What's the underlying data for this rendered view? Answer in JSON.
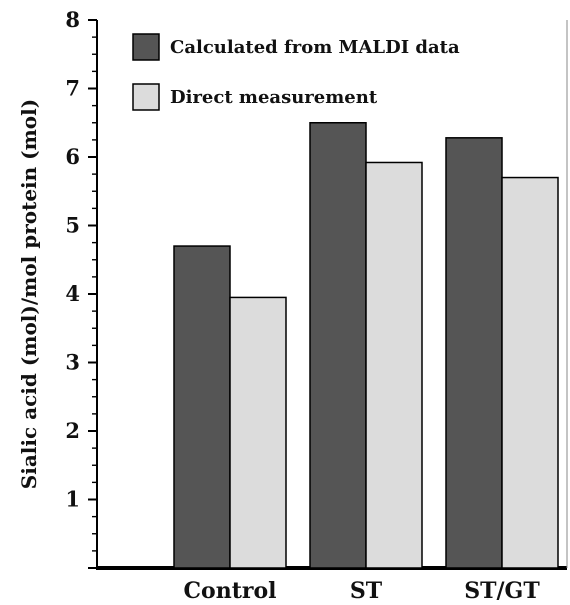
{
  "chart_data": {
    "type": "bar",
    "title": "",
    "xlabel": "",
    "ylabel": "Sialic acid (mol)/mol protein (mol)",
    "ylim": [
      0,
      8
    ],
    "yticks": [
      "1",
      "2",
      "3",
      "4",
      "5",
      "6",
      "7",
      "8"
    ],
    "categories": [
      "Control",
      "ST",
      "ST/GT"
    ],
    "series": [
      {
        "name": "Calculated from MALDI data",
        "color": "#555555",
        "values": [
          4.7,
          6.5,
          6.28
        ]
      },
      {
        "name": "Direct measurement",
        "color": "#dcdcdc",
        "values": [
          3.95,
          5.92,
          5.7
        ]
      }
    ],
    "legend_position": "top-left",
    "grid": false
  }
}
